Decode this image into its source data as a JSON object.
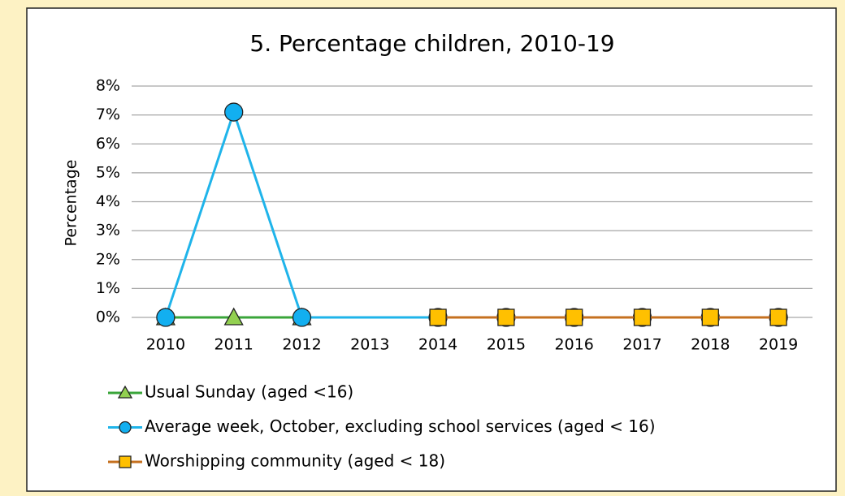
{
  "chart_data": {
    "type": "line",
    "title": "5. Percentage children, 2010-19",
    "y_label": "Percentage",
    "categories": [
      "2010",
      "2011",
      "2012",
      "2013",
      "2014",
      "2015",
      "2016",
      "2017",
      "2018",
      "2019"
    ],
    "series": [
      {
        "name": "Usual Sunday (aged <16)",
        "color": "#3aa53a",
        "marker": "triangle",
        "marker_color": "#92d050",
        "values": [
          0,
          0,
          0,
          null,
          null,
          null,
          null,
          null,
          null,
          null
        ]
      },
      {
        "name": "Average week, October, excluding school services (aged < 16)",
        "color": "#1fb4ea",
        "marker": "circle",
        "marker_color": "#12aff0",
        "values": [
          0,
          7.1,
          0,
          null,
          0,
          0,
          0,
          0,
          0,
          0
        ]
      },
      {
        "name": "Worshipping community (aged < 18)",
        "color": "#c5701f",
        "marker": "square",
        "marker_color": "#ffc000",
        "values": [
          null,
          null,
          null,
          null,
          0,
          0,
          0,
          0,
          0,
          0
        ]
      }
    ],
    "connect_gaps": true,
    "ylim": [
      0,
      8
    ],
    "yticks": [
      {
        "value": 0,
        "label": "0%"
      },
      {
        "value": 1,
        "label": "1%"
      },
      {
        "value": 2,
        "label": "2%"
      },
      {
        "value": 3,
        "label": "3%"
      },
      {
        "value": 4,
        "label": "4%"
      },
      {
        "value": 5,
        "label": "5%"
      },
      {
        "value": 6,
        "label": "6%"
      },
      {
        "value": 7,
        "label": "7%"
      },
      {
        "value": 8,
        "label": "8%"
      }
    ],
    "grid": true,
    "legend": "bottom"
  }
}
